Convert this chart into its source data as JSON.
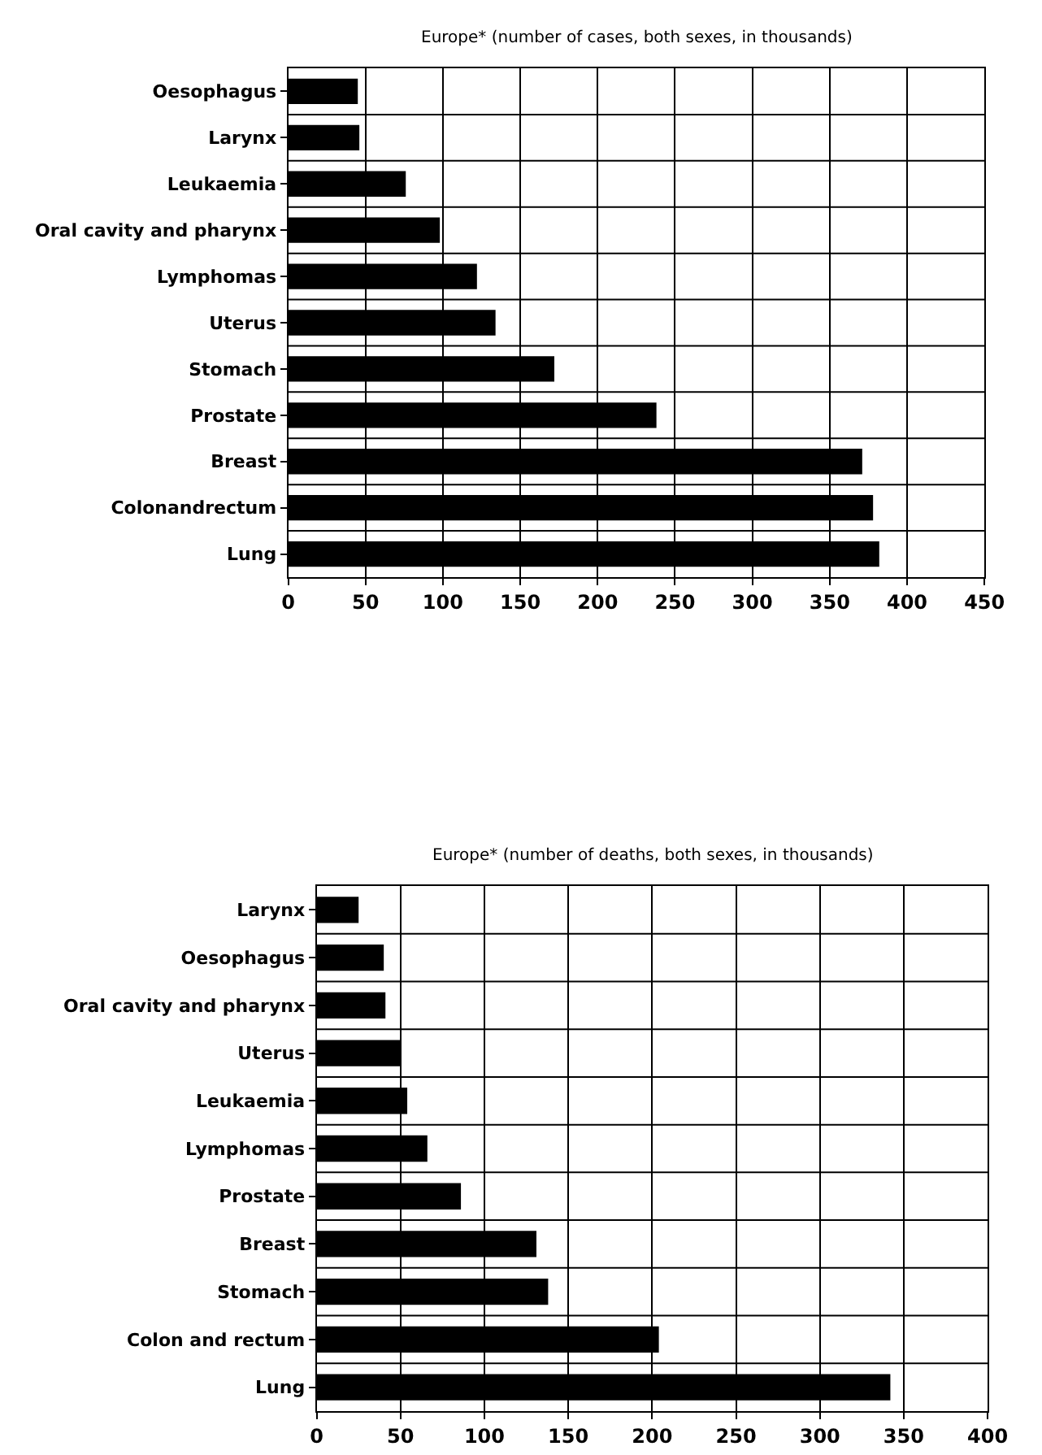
{
  "chart_data": [
    {
      "type": "bar",
      "orientation": "horizontal",
      "title": "Europe* (number of cases, both sexes, in thousands)",
      "categories": [
        "Oesophagus",
        "Larynx",
        "Leukaemia",
        "Oral cavity and pharynx",
        "Lymphomas",
        "Uterus",
        "Stomach",
        "Prostate",
        "Breast",
        "Colonandrectum",
        "Lung"
      ],
      "values": [
        45,
        46,
        76,
        98,
        122,
        134,
        172,
        238,
        371,
        378,
        382
      ],
      "color": "#000000",
      "xlim": [
        0,
        450
      ],
      "xticks": [
        0,
        50,
        100,
        150,
        200,
        250,
        300,
        350,
        400,
        450
      ],
      "grid": true
    },
    {
      "type": "bar",
      "orientation": "horizontal",
      "title": "Europe* (number of deaths, both sexes, in thousands)",
      "categories": [
        "Larynx",
        "Oesophagus",
        "Oral cavity and pharynx",
        "Uterus",
        "Leukaemia",
        "Lymphomas",
        "Prostate",
        "Breast",
        "Stomach",
        "Colon and rectum",
        "Lung"
      ],
      "values": [
        25,
        40,
        41,
        50,
        54,
        66,
        86,
        131,
        138,
        204,
        342
      ],
      "color": "#000000",
      "xlim": [
        0,
        400
      ],
      "xticks": [
        0,
        50,
        100,
        150,
        200,
        250,
        300,
        350,
        400
      ],
      "grid": true
    }
  ]
}
